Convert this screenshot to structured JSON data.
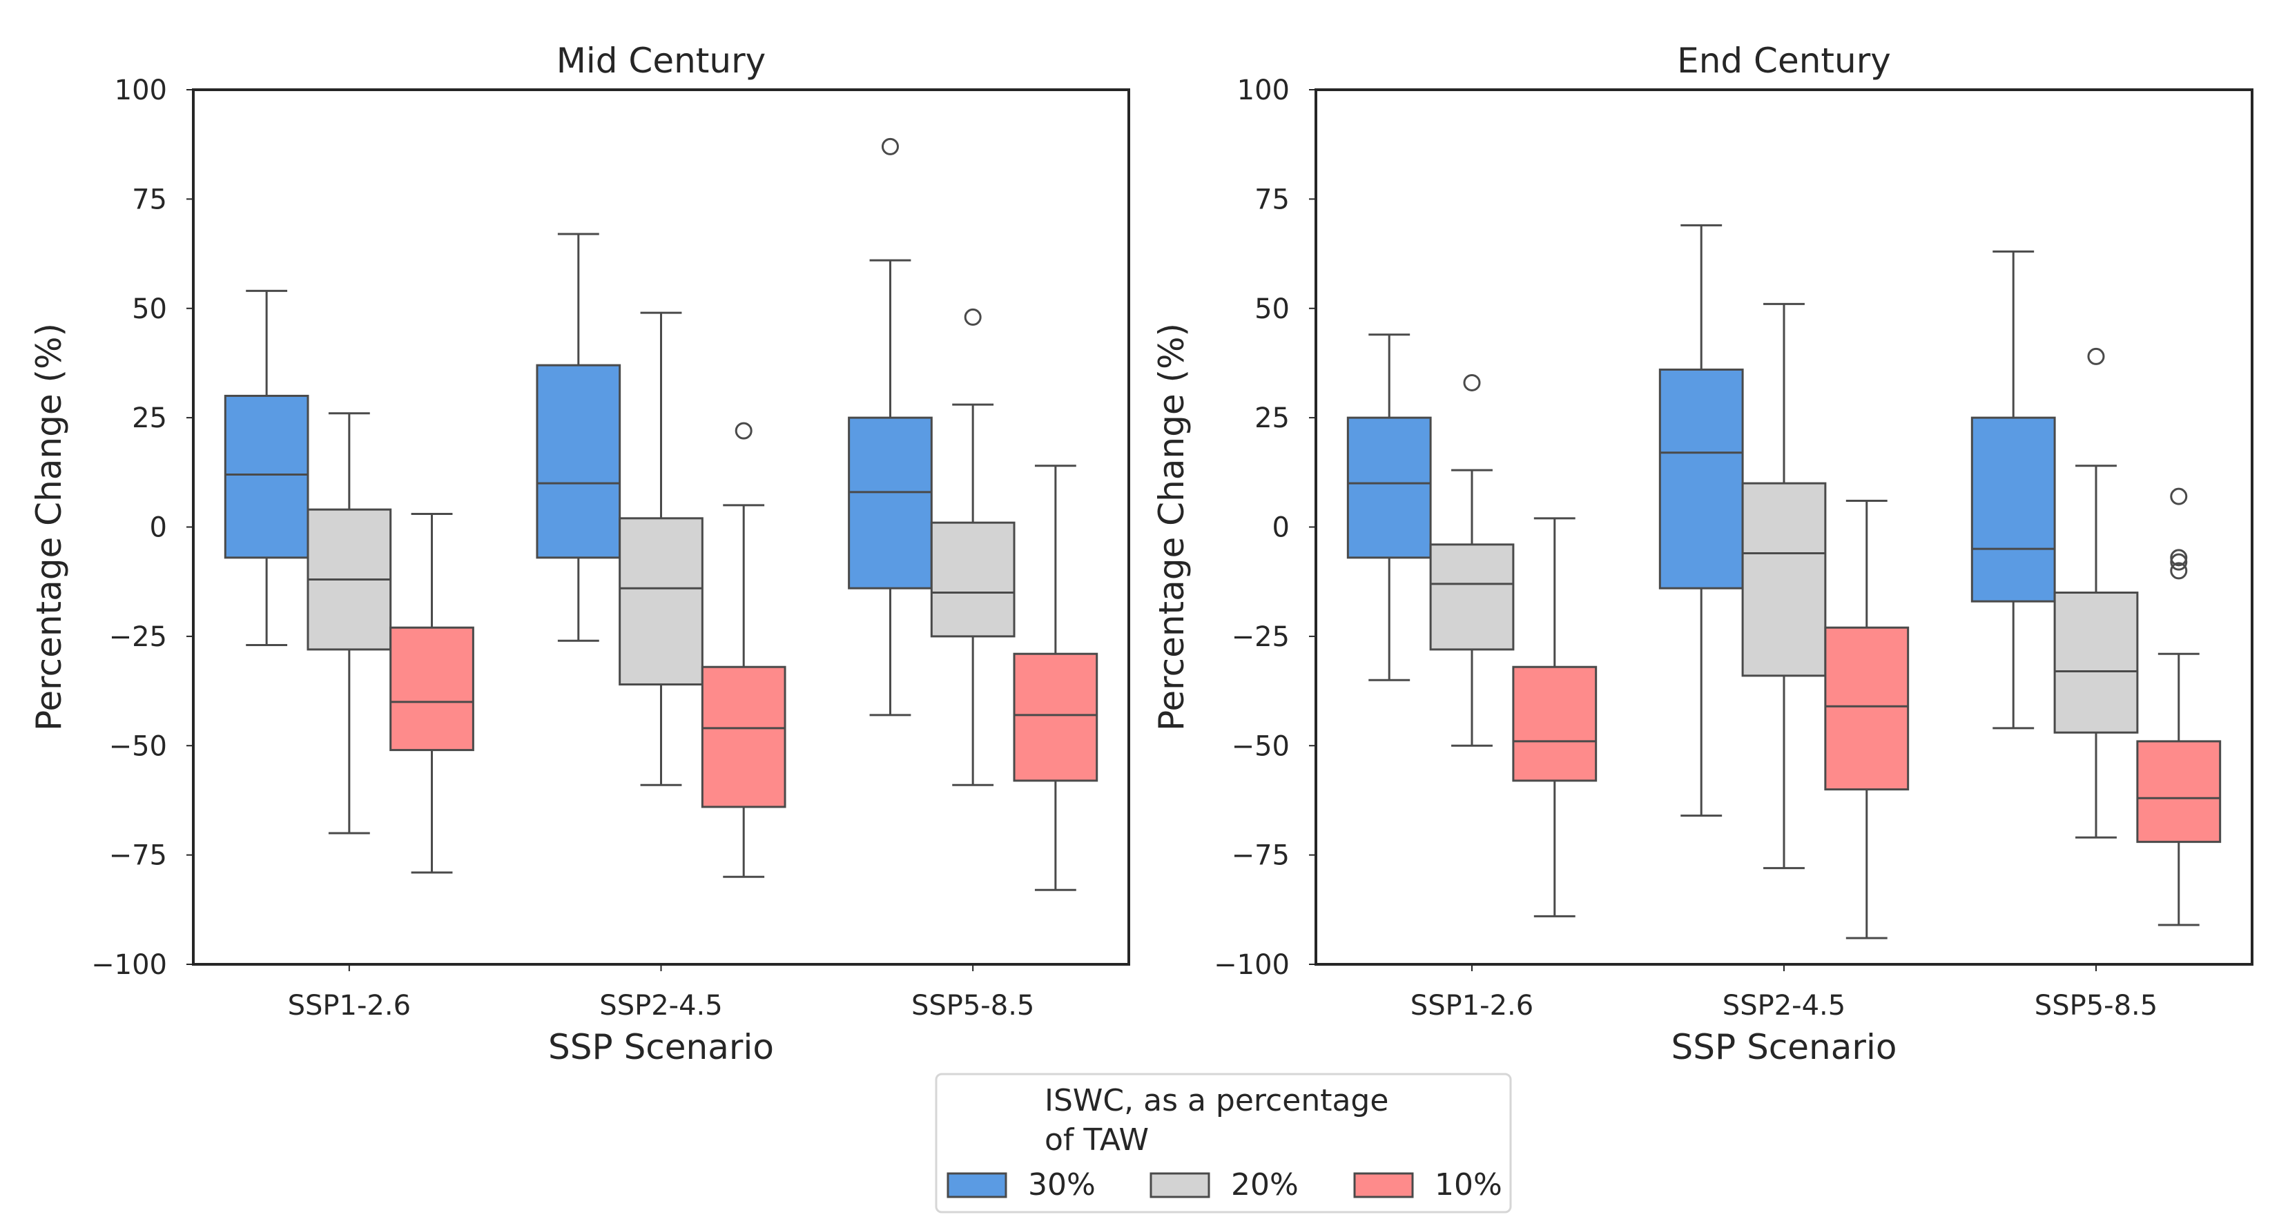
{
  "chart_data": {
    "type": "boxplot",
    "ylabel": "Percentage Change (%)",
    "xlabel": "SSP Scenario",
    "ylim": [
      -100,
      100
    ],
    "yticks": [
      100,
      75,
      50,
      25,
      0,
      -25,
      -50,
      -75,
      -100
    ],
    "ytick_labels": [
      "100",
      "75",
      "50",
      "25",
      "0",
      "−25",
      "−50",
      "−75",
      "−100"
    ],
    "categories": [
      "SSP1-2.6",
      "SSP2-4.5",
      "SSP5-8.5"
    ],
    "legend": {
      "title_line1": "ISWC, as a percentage",
      "title_line2": "of TAW",
      "position": "bottom-center",
      "entries": [
        {
          "label": "30%",
          "color": "#5b9be3"
        },
        {
          "label": "20%",
          "color": "#d3d3d3"
        },
        {
          "label": "10%",
          "color": "#fe8b8b"
        }
      ]
    },
    "panels": [
      {
        "title": "Mid Century",
        "groups": [
          {
            "category": "SSP1-2.6",
            "boxes": [
              {
                "series": "30%",
                "whislo": -27,
                "q1": -7,
                "med": 12,
                "q3": 30,
                "whishi": 54,
                "fliers": []
              },
              {
                "series": "20%",
                "whislo": -70,
                "q1": -28,
                "med": -12,
                "q3": 4,
                "whishi": 26,
                "fliers": []
              },
              {
                "series": "10%",
                "whislo": -79,
                "q1": -51,
                "med": -40,
                "q3": -23,
                "whishi": 3,
                "fliers": []
              }
            ]
          },
          {
            "category": "SSP2-4.5",
            "boxes": [
              {
                "series": "30%",
                "whislo": -26,
                "q1": -7,
                "med": 10,
                "q3": 37,
                "whishi": 67,
                "fliers": []
              },
              {
                "series": "20%",
                "whislo": -59,
                "q1": -36,
                "med": -14,
                "q3": 2,
                "whishi": 49,
                "fliers": []
              },
              {
                "series": "10%",
                "whislo": -80,
                "q1": -64,
                "med": -46,
                "q3": -32,
                "whishi": 5,
                "fliers": [
                  22
                ]
              }
            ]
          },
          {
            "category": "SSP5-8.5",
            "boxes": [
              {
                "series": "30%",
                "whislo": -43,
                "q1": -14,
                "med": 8,
                "q3": 25,
                "whishi": 61,
                "fliers": [
                  87
                ]
              },
              {
                "series": "20%",
                "whislo": -59,
                "q1": -25,
                "med": -15,
                "q3": 1,
                "whishi": 28,
                "fliers": [
                  48
                ]
              },
              {
                "series": "10%",
                "whislo": -83,
                "q1": -58,
                "med": -43,
                "q3": -29,
                "whishi": 14,
                "fliers": []
              }
            ]
          }
        ]
      },
      {
        "title": "End Century",
        "groups": [
          {
            "category": "SSP1-2.6",
            "boxes": [
              {
                "series": "30%",
                "whislo": -35,
                "q1": -7,
                "med": 10,
                "q3": 25,
                "whishi": 44,
                "fliers": []
              },
              {
                "series": "20%",
                "whislo": -50,
                "q1": -28,
                "med": -13,
                "q3": -4,
                "whishi": 13,
                "fliers": [
                  33
                ]
              },
              {
                "series": "10%",
                "whislo": -89,
                "q1": -58,
                "med": -49,
                "q3": -32,
                "whishi": 2,
                "fliers": []
              }
            ]
          },
          {
            "category": "SSP2-4.5",
            "boxes": [
              {
                "series": "30%",
                "whislo": -66,
                "q1": -14,
                "med": 17,
                "q3": 36,
                "whishi": 69,
                "fliers": []
              },
              {
                "series": "20%",
                "whislo": -78,
                "q1": -34,
                "med": -6,
                "q3": 10,
                "whishi": 51,
                "fliers": []
              },
              {
                "series": "10%",
                "whislo": -94,
                "q1": -60,
                "med": -41,
                "q3": -23,
                "whishi": 6,
                "fliers": []
              }
            ]
          },
          {
            "category": "SSP5-8.5",
            "boxes": [
              {
                "series": "30%",
                "whislo": -46,
                "q1": -17,
                "med": -5,
                "q3": 25,
                "whishi": 63,
                "fliers": []
              },
              {
                "series": "20%",
                "whislo": -71,
                "q1": -47,
                "med": -33,
                "q3": -15,
                "whishi": 14,
                "fliers": [
                  39
                ]
              },
              {
                "series": "10%",
                "whislo": -91,
                "q1": -72,
                "med": -62,
                "q3": -49,
                "whishi": -29,
                "fliers": [
                  7,
                  -7,
                  -8,
                  -10
                ]
              }
            ]
          }
        ]
      }
    ]
  }
}
